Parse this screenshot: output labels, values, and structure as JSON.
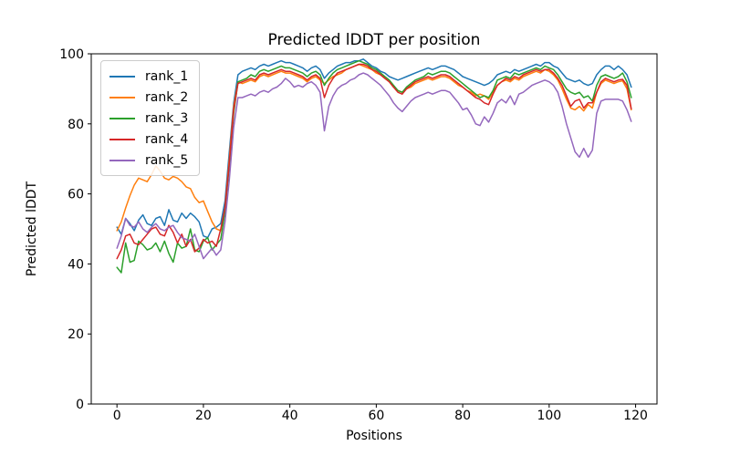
{
  "figure": {
    "title": "Predicted lDDT per position",
    "xlabel": "Positions",
    "ylabel": "Predicted lDDT"
  },
  "chart_data": {
    "type": "line",
    "title": "Predicted lDDT per position",
    "xlabel": "Positions",
    "ylabel": "Predicted lDDT",
    "xlim": [
      -5.95,
      124.95
    ],
    "ylim": [
      0,
      100
    ],
    "xticks": [
      0,
      20,
      40,
      60,
      80,
      100,
      120
    ],
    "yticks": [
      0,
      20,
      40,
      60,
      80,
      100
    ],
    "grid": false,
    "legend_position": "upper left",
    "x_range": [
      0,
      119
    ],
    "series": [
      {
        "name": "rank_1",
        "color": "#1f77b4",
        "values": [
          50.5,
          48.5,
          53,
          51.5,
          49.5,
          52.5,
          54,
          51.5,
          51,
          53,
          53.5,
          51,
          55.5,
          52.5,
          52,
          54.5,
          53,
          54.5,
          53.5,
          52,
          48,
          47.5,
          50,
          50.5,
          51.5,
          58,
          72,
          86,
          94,
          95,
          95.5,
          96,
          95.5,
          96.5,
          97,
          96.5,
          97,
          97.5,
          98,
          97.5,
          97.5,
          97,
          96.5,
          96,
          95,
          96,
          96.5,
          95.5,
          93,
          94.5,
          95.5,
          96.5,
          97,
          97.5,
          97.5,
          98,
          98,
          98.5,
          97.5,
          96.5,
          96,
          95,
          94.5,
          93.5,
          93,
          92.5,
          93,
          93.5,
          94,
          94.5,
          95,
          95.5,
          96,
          95.5,
          96,
          96.5,
          96.5,
          96,
          95.5,
          94.5,
          93.5,
          93,
          92.5,
          92,
          91.5,
          91,
          91.5,
          92.5,
          94,
          94.5,
          95,
          94.5,
          95.5,
          95,
          95.5,
          96,
          96.5,
          97,
          96.5,
          97.5,
          97.5,
          96.5,
          96,
          94.5,
          93,
          92.5,
          92,
          92.5,
          91.5,
          91,
          91.5,
          94,
          95.5,
          96.5,
          96.5,
          95.5,
          96.5,
          95.5,
          94,
          90.5
        ]
      },
      {
        "name": "rank_2",
        "color": "#ff7f0e",
        "values": [
          49.5,
          52,
          56,
          59.5,
          62.5,
          64.5,
          64,
          63.5,
          65.5,
          68,
          66.5,
          64.5,
          64,
          65,
          64.5,
          63.5,
          62,
          61.5,
          59,
          57.5,
          58,
          55,
          52,
          50,
          49.5,
          56,
          70,
          85,
          92,
          91.5,
          92,
          92.5,
          92,
          93.5,
          94,
          93.5,
          94,
          94.5,
          95,
          94.5,
          94.5,
          94,
          93.5,
          93,
          92,
          93,
          93.5,
          92.5,
          91.5,
          92.5,
          93.5,
          94,
          94.5,
          95.5,
          96,
          96.5,
          97,
          96.5,
          96,
          95.5,
          94.5,
          94,
          93,
          92,
          90.5,
          89.5,
          89,
          90,
          90.5,
          91.5,
          92,
          92.5,
          93,
          92.5,
          93,
          93.5,
          93.5,
          93,
          92,
          91,
          90.5,
          89.5,
          89,
          88,
          88.5,
          88,
          87,
          89,
          91,
          92,
          92.5,
          92,
          93,
          92.5,
          93.5,
          94,
          94.5,
          95,
          94.5,
          95.5,
          95,
          94,
          92.5,
          90,
          87,
          84.5,
          84,
          85,
          83.7,
          85.5,
          84.5,
          89,
          91.5,
          92.5,
          92,
          91.5,
          92,
          92.3,
          90,
          84
        ]
      },
      {
        "name": "rank_3",
        "color": "#2ca02c",
        "values": [
          39,
          37.5,
          46,
          40.5,
          41,
          46.5,
          45.5,
          44,
          44.5,
          46,
          43.5,
          46.5,
          43,
          40.5,
          46,
          44.5,
          45,
          50,
          44,
          43.5,
          46.5,
          47.5,
          44,
          45.5,
          47,
          55,
          68,
          83,
          92,
          92.5,
          93,
          94,
          93.5,
          95,
          95.5,
          95,
          95.5,
          96,
          96.5,
          96,
          96,
          95.5,
          95,
          94.5,
          93.5,
          94.5,
          95,
          94,
          91,
          93,
          94.5,
          95.5,
          96,
          96.5,
          97,
          97.5,
          98,
          97.5,
          97,
          96,
          95.5,
          94.5,
          93.5,
          92.5,
          91,
          89.5,
          89,
          90.5,
          91.5,
          92.5,
          93,
          93.5,
          94.5,
          94,
          94.5,
          95,
          95,
          94.5,
          93.5,
          92.5,
          91.5,
          90.5,
          89.5,
          88.5,
          87.5,
          88,
          87.5,
          89.5,
          92.5,
          93,
          93.5,
          93,
          94.5,
          94,
          94.5,
          95,
          95.5,
          96,
          95.5,
          96.5,
          96,
          95.5,
          94,
          92,
          90,
          89,
          88.5,
          89,
          87.5,
          88,
          86.5,
          91,
          93.5,
          94,
          93.5,
          93,
          93.5,
          94.5,
          92,
          87.5
        ]
      },
      {
        "name": "rank_4",
        "color": "#d62728",
        "values": [
          41.5,
          44,
          48,
          48.5,
          46,
          45.5,
          47,
          48.5,
          50,
          50.5,
          48.5,
          48,
          51,
          49,
          46,
          48.5,
          45,
          47,
          43.5,
          44.5,
          47,
          46,
          46.5,
          45,
          50,
          56,
          69,
          84,
          91.5,
          92,
          92.5,
          93,
          92.5,
          94,
          94.5,
          94,
          94.5,
          95,
          95.5,
          95,
          95,
          94.5,
          94,
          93.5,
          92.5,
          93.5,
          94,
          93,
          87.5,
          91,
          93,
          94.5,
          95,
          95.5,
          96,
          96.5,
          97,
          97,
          96.5,
          95.5,
          95,
          94,
          93,
          92,
          90.5,
          89,
          88.5,
          90,
          91,
          92,
          92.5,
          93,
          93.5,
          93,
          93.5,
          94,
          94,
          93.5,
          92.5,
          91.5,
          90.5,
          89.5,
          88.5,
          87.5,
          87,
          86,
          85.5,
          88.5,
          91,
          92,
          93,
          92.5,
          93.5,
          93,
          94,
          94.5,
          95,
          95.5,
          95,
          95.5,
          95.5,
          94.5,
          93,
          91,
          88,
          85,
          86.5,
          87,
          84.5,
          86,
          86,
          89,
          92,
          93,
          92.5,
          92,
          92.5,
          92.7,
          91,
          84.3
        ]
      },
      {
        "name": "rank_5",
        "color": "#9467bd",
        "values": [
          44.5,
          48,
          53,
          51,
          50.5,
          52,
          50,
          49,
          50.5,
          51.5,
          50,
          49.5,
          50.5,
          51,
          49,
          47.5,
          47,
          46.5,
          48.5,
          45,
          41.5,
          43,
          44.5,
          42.5,
          44,
          52,
          64,
          79,
          87.5,
          87.5,
          88,
          88.5,
          88,
          89,
          89.5,
          89,
          90,
          90.5,
          91.5,
          93,
          92,
          90.5,
          91,
          90.5,
          91.5,
          92,
          91,
          89,
          78,
          85,
          88,
          90,
          91,
          91.5,
          92.5,
          93,
          94,
          94.5,
          94,
          93,
          92,
          91,
          89.5,
          88,
          86,
          84.5,
          83.5,
          85,
          86.5,
          87.5,
          88,
          88.5,
          89,
          88.5,
          89,
          89.5,
          89.5,
          89,
          87.5,
          86,
          84,
          84.5,
          82.5,
          80,
          79.5,
          82,
          80.5,
          83,
          86,
          87,
          86,
          88,
          85.5,
          88.5,
          89,
          90,
          91,
          91.5,
          92,
          92.5,
          92,
          91,
          89,
          85,
          80,
          76,
          72,
          70.5,
          73,
          70.5,
          72.5,
          83,
          86.5,
          87,
          87,
          87,
          87,
          86.5,
          84,
          80.7
        ]
      }
    ]
  }
}
